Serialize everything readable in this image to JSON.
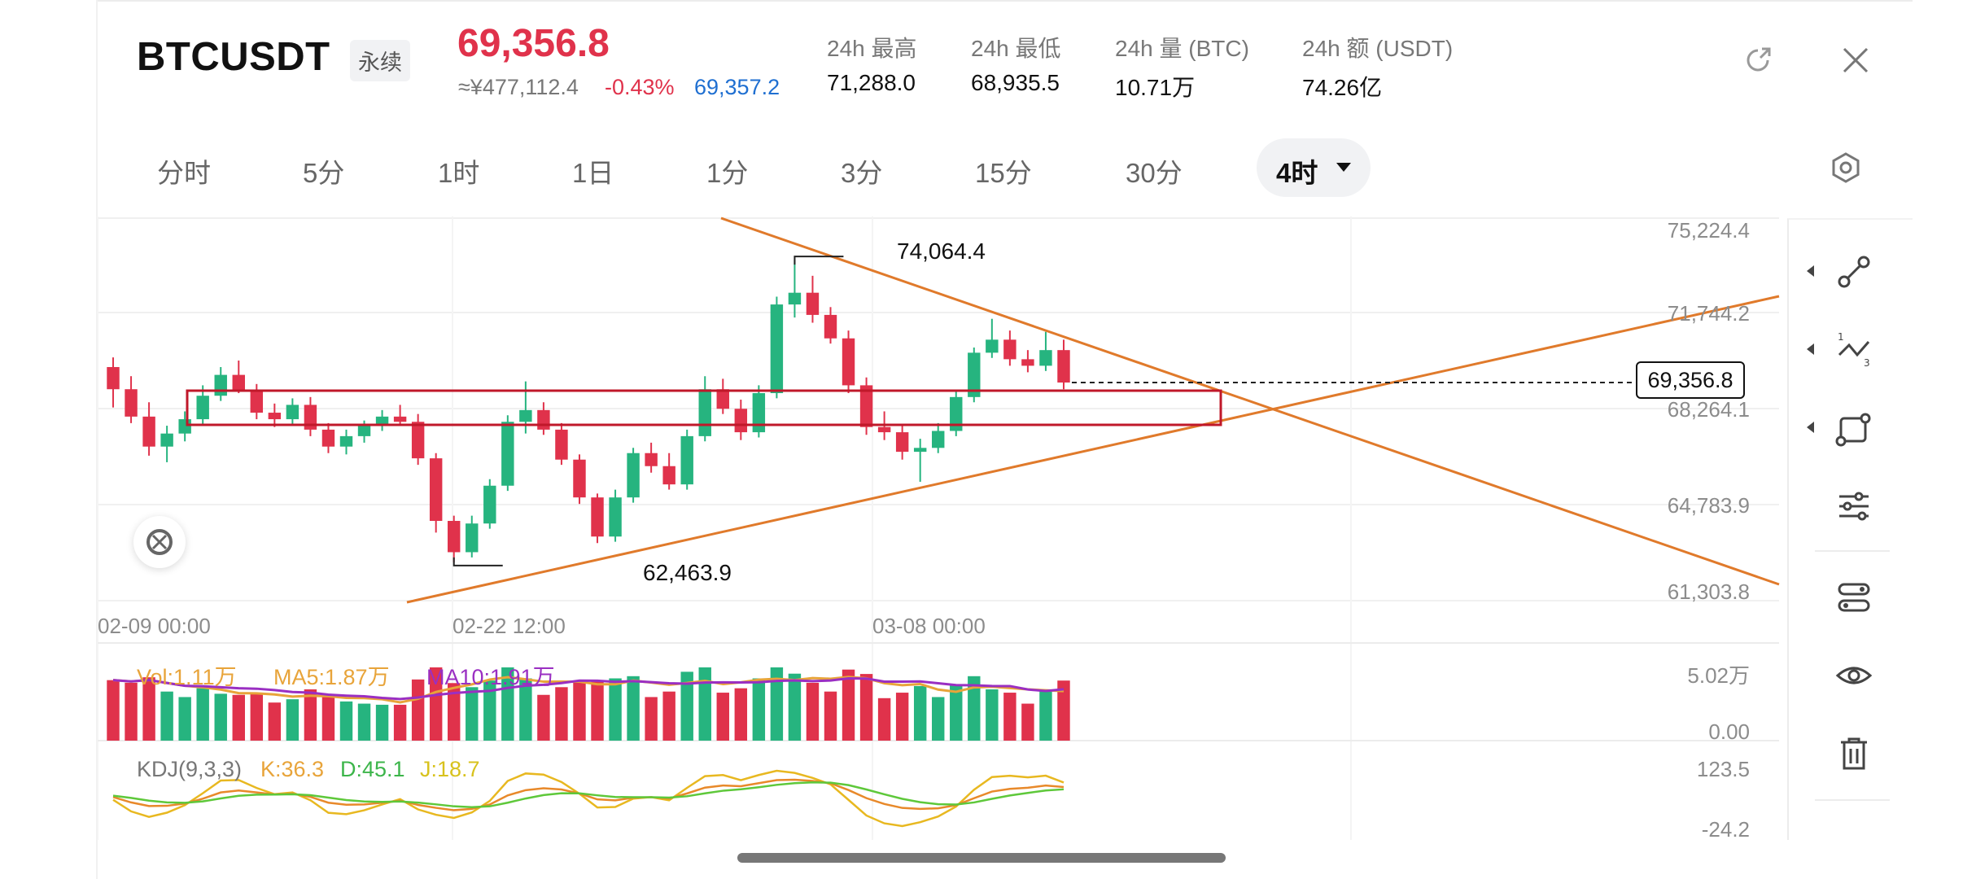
{
  "header": {
    "symbol": "BTCUSDT",
    "contract": "永续",
    "price": "69,356.8",
    "cny_price": "≈¥477,112.4",
    "change_pct": "-0.43%",
    "mark_price": "69,357.2",
    "stats": [
      {
        "label": "24h  最高",
        "value": "71,288.0"
      },
      {
        "label": "24h  最低",
        "value": "68,935.5"
      },
      {
        "label": "24h  量 (BTC)",
        "value": "10.71万"
      },
      {
        "label": "24h  额 (USDT)",
        "value": "74.26亿"
      }
    ]
  },
  "tabs": [
    "分时",
    "5分",
    "1时",
    "1日",
    "1分",
    "3分",
    "15分",
    "30分"
  ],
  "active_tab": "4时",
  "chart": {
    "y_ticks": [
      "75,224.4",
      "71,744.2",
      "68,264.1",
      "64,783.9",
      "61,303.8"
    ],
    "x_ticks": [
      "02-09 00:00",
      "02-22 12:00",
      "03-08 00:00"
    ],
    "high_label": "74,064.4",
    "low_label": "62,463.9",
    "last_price_tag": "69,356.8",
    "volume": {
      "vol": "Vol:1.11万",
      "ma5": "MA5:1.87万",
      "ma10": "MA10:1.91万",
      "axis_top": "5.02万",
      "axis_bottom": "0.00"
    },
    "kdj": {
      "name": "KDJ(9,3,3)",
      "k": "K:36.3",
      "d": "D:45.1",
      "j": "J:18.7",
      "axis_top": "123.5",
      "axis_bottom": "-24.2"
    }
  },
  "colors": {
    "up": "#26b47f",
    "down": "#e0324b",
    "trendline": "#e07a2b",
    "zone": "#c0182a",
    "ma5": "#e8a43a",
    "ma10": "#9a2fc2"
  },
  "icons": [
    "share-icon",
    "close-icon",
    "settings-icon",
    "draw-line-icon",
    "fib-icon",
    "shape-icon",
    "adjust-icon",
    "template-icon",
    "eye-icon",
    "trash-icon"
  ],
  "chart_data": {
    "type": "candlestick",
    "ylim": [
      61303.8,
      75224.4
    ],
    "x_ticks": [
      "02-09 00:00",
      "02-22 12:00",
      "03-08 00:00"
    ],
    "y_ticks": [
      75224.4,
      71744.2,
      68264.1,
      64783.9,
      61303.8
    ],
    "annotations": [
      {
        "label": "74,064.4",
        "y": 74064.4
      },
      {
        "label": "62,463.9",
        "y": 62463.9
      },
      {
        "label": "69,356.8",
        "y": 69356.8
      }
    ],
    "series": [
      {
        "values": [
          [
            69950,
            70320,
            68400,
            69100
          ],
          [
            69100,
            69600,
            67800,
            68050
          ],
          [
            68050,
            68600,
            66550,
            66900
          ],
          [
            66900,
            67700,
            66300,
            67400
          ],
          [
            67400,
            68250,
            67100,
            67950
          ],
          [
            67950,
            69250,
            67700,
            68850
          ],
          [
            68850,
            69950,
            68650,
            69650
          ],
          [
            69650,
            70200,
            68950,
            69050
          ],
          [
            69050,
            69300,
            67950,
            68200
          ],
          [
            68200,
            68550,
            67650,
            67950
          ],
          [
            67950,
            68750,
            67700,
            68500
          ],
          [
            68500,
            68800,
            67300,
            67550
          ],
          [
            67550,
            67800,
            66650,
            66900
          ],
          [
            66900,
            67550,
            66600,
            67300
          ],
          [
            67300,
            67900,
            67050,
            67700
          ],
          [
            67700,
            68300,
            67500,
            68050
          ],
          [
            68050,
            68500,
            67700,
            67850
          ],
          [
            67850,
            68150,
            66200,
            66450
          ],
          [
            66450,
            66650,
            63600,
            64050
          ],
          [
            64050,
            64250,
            62463.9,
            62850
          ],
          [
            62850,
            64250,
            62650,
            63950
          ],
          [
            63950,
            65650,
            63750,
            65400
          ],
          [
            65400,
            68100,
            65200,
            67850
          ],
          [
            67850,
            69400,
            67400,
            68300
          ],
          [
            68300,
            68600,
            67350,
            67550
          ],
          [
            67550,
            67800,
            66200,
            66400
          ],
          [
            66400,
            66600,
            64700,
            64950
          ],
          [
            64950,
            65100,
            63200,
            63450
          ],
          [
            63450,
            65250,
            63250,
            64950
          ],
          [
            64950,
            66850,
            64750,
            66650
          ],
          [
            66650,
            67050,
            65900,
            66150
          ],
          [
            66150,
            66650,
            65250,
            65450
          ],
          [
            65450,
            67550,
            65250,
            67300
          ],
          [
            67300,
            69600,
            67100,
            69100
          ],
          [
            69100,
            69500,
            68150,
            68350
          ],
          [
            68350,
            68700,
            67150,
            67450
          ],
          [
            67450,
            69250,
            67250,
            68950
          ],
          [
            68950,
            72650,
            68750,
            72350
          ],
          [
            72350,
            74064.4,
            71850,
            72800
          ],
          [
            72800,
            73450,
            71650,
            71950
          ],
          [
            71950,
            72250,
            70850,
            71050
          ],
          [
            71050,
            71350,
            68950,
            69250
          ],
          [
            69250,
            69550,
            67350,
            67650
          ],
          [
            67650,
            68250,
            67150,
            67450
          ],
          [
            67450,
            67750,
            66400,
            66700
          ],
          [
            66700,
            67200,
            65550,
            66850
          ],
          [
            66850,
            67800,
            66650,
            67500
          ],
          [
            67500,
            69000,
            67300,
            68800
          ],
          [
            68800,
            70700,
            68600,
            70500
          ],
          [
            70500,
            71800,
            70300,
            71000
          ],
          [
            71000,
            71350,
            70000,
            70250
          ],
          [
            70250,
            70600,
            69750,
            70000
          ],
          [
            70000,
            71300,
            69800,
            70600
          ],
          [
            70600,
            71000,
            69100,
            69356.8
          ]
        ]
      }
    ]
  }
}
